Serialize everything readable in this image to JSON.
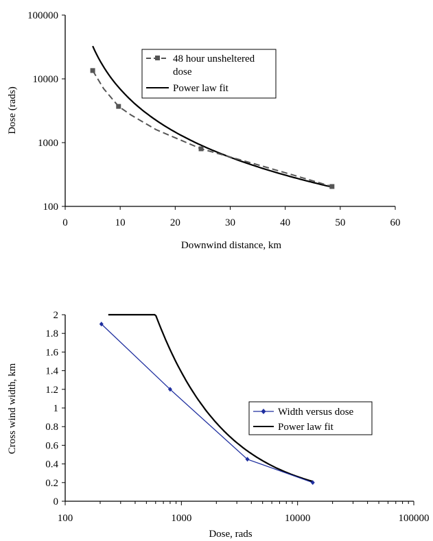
{
  "chart_data": [
    {
      "type": "line",
      "xlabel": "Downwind distance, km",
      "ylabel": "Dose (rads)",
      "xlim": [
        0,
        60
      ],
      "ylim": [
        100,
        100000
      ],
      "yscale": "log",
      "xticks": [
        "0",
        "10",
        "20",
        "30",
        "40",
        "50",
        "60"
      ],
      "yticks": [
        "100",
        "1000",
        "10000",
        "100000"
      ],
      "grid": false,
      "legend_position": "top-right",
      "series": [
        {
          "name": "48 hour unsheltered dose",
          "style": "dashed with square markers",
          "color": "#555555",
          "x": [
            5,
            7,
            9.7,
            12,
            16.5,
            24.7,
            35,
            42,
            48.5
          ],
          "y": [
            13500,
            7000,
            3700,
            2700,
            1600,
            800,
            450,
            300,
            205
          ]
        },
        {
          "name": "Power law fit",
          "style": "solid",
          "color": "#000000",
          "formula": "y = 1.2e6 * x^(-2.24)",
          "x_range": [
            5,
            48.5
          ]
        }
      ],
      "legend_line1": "48 hour unsheltered",
      "legend_line2": "dose",
      "legend_fit": "Power law fit"
    },
    {
      "type": "line",
      "xlabel": "Dose, rads",
      "ylabel": "Cross wind width, km",
      "xscale": "log",
      "xlim": [
        100,
        100000
      ],
      "ylim": [
        0,
        2
      ],
      "xticks": [
        "100",
        "1000",
        "10000",
        "100000"
      ],
      "yticks": [
        "0",
        "0.2",
        "0.4",
        "0.6",
        "0.8",
        "1",
        "1.2",
        "1.4",
        "1.6",
        "1.8",
        "2"
      ],
      "grid": false,
      "legend_position": "middle-right",
      "series": [
        {
          "name": "Width versus dose",
          "style": "solid with diamond markers",
          "color": "#1f2f9f",
          "x": [
            205,
            800,
            3700,
            13500
          ],
          "y": [
            1.9,
            1.2,
            0.45,
            0.2
          ]
        },
        {
          "name": "Power law fit",
          "style": "solid",
          "color": "#000000",
          "formula": "y = 200 * x^(-0.72)",
          "x_range": [
            235,
            13500
          ]
        }
      ],
      "legend_series": "Width versus dose",
      "legend_fit": "Power law fit"
    }
  ]
}
